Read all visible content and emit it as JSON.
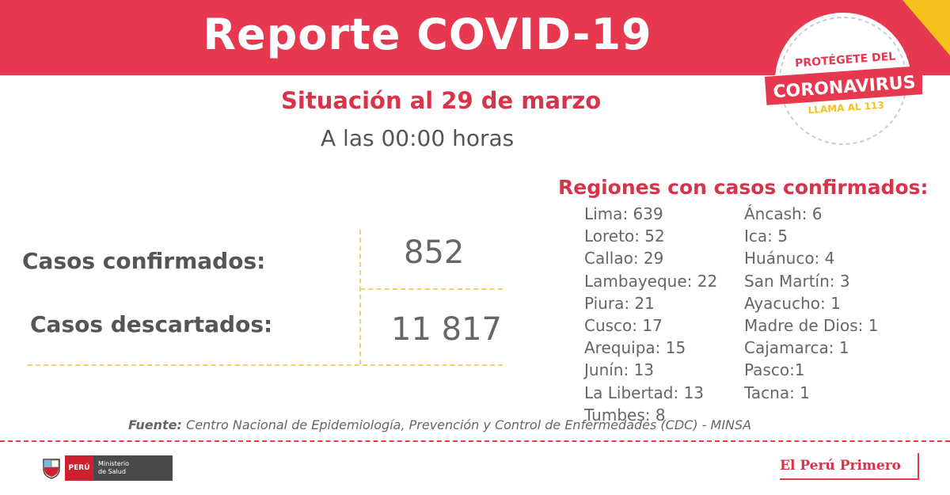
{
  "header": {
    "title": "Reporte COVID-19"
  },
  "situation": {
    "date": "Situación al 29 de marzo",
    "time": "A las 00:00 horas"
  },
  "stats": {
    "confirmed_label": "Casos confirmados:",
    "confirmed_value": "852",
    "discarded_label": "Casos descartados:",
    "discarded_value": "11 817"
  },
  "regions": {
    "title": "Regiones con casos confirmados:",
    "col1": [
      "Lima: 639",
      "Loreto: 52",
      "Callao: 29",
      "Lambayeque: 22",
      "Piura: 21",
      "Cusco: 17",
      "Arequipa: 15",
      "Junín: 13",
      "La Libertad: 13",
      "Tumbes: 8"
    ],
    "col2": [
      "Áncash: 6",
      "Ica: 5",
      "Huánuco: 4",
      "San Martín: 3",
      "Ayacucho: 1",
      "Madre de Dios: 1",
      "Cajamarca:  1",
      "Pasco:1",
      "Tacna: 1"
    ]
  },
  "source": {
    "label": "Fuente:",
    "text": " Centro Nacional de Epidemiología, Prevención y Control de Enfermedades (CDC) - MINSA"
  },
  "badge": {
    "line1": "PROTÉGETE DEL",
    "line2": "CORONAVIRUS",
    "line3": "LLAMA AL 113"
  },
  "footer": {
    "peru": "PERÚ",
    "ministry_line1": "Ministerio",
    "ministry_line2": "de Salud",
    "brand": "El Perú Primero"
  },
  "colors": {
    "accent": "#e6384f",
    "yellow": "#f6c11b",
    "text": "#555555"
  }
}
